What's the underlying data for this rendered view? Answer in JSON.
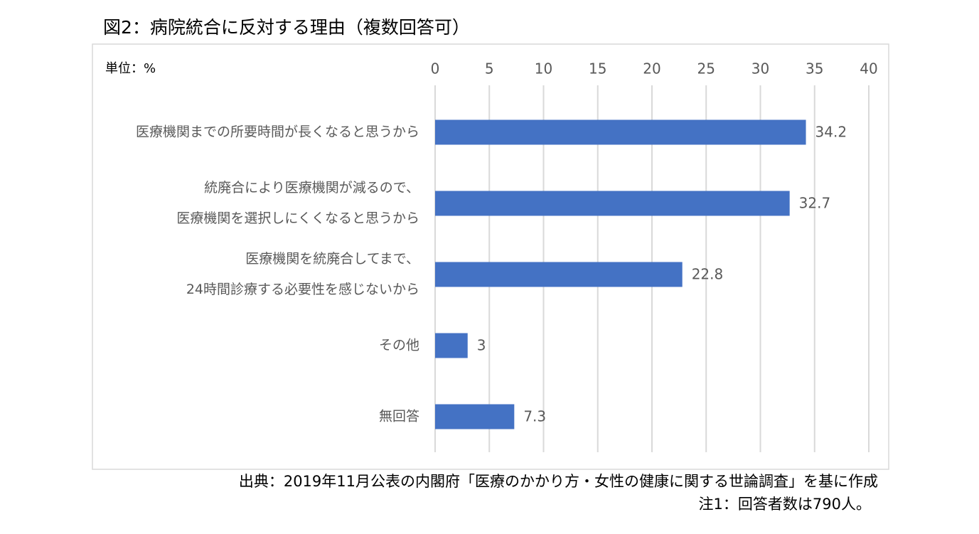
{
  "chart_data": {
    "type": "bar",
    "orientation": "horizontal",
    "title": "図2：病院統合に反対する理由（複数回答可）",
    "unit_label": "単位：%",
    "categories": [
      [
        "医療機関までの所要時間が長くなると思うから"
      ],
      [
        "統廃合により医療機関が減るので、",
        "医療機関を選択しにくくなると思うから"
      ],
      [
        "医療機関を統廃合してまで、",
        "24時間診療する必要性を感じないから"
      ],
      [
        "その他"
      ],
      [
        "無回答"
      ]
    ],
    "values": [
      34.2,
      32.7,
      22.8,
      3,
      7.3
    ],
    "color": "#4472c4",
    "xlim": [
      0,
      40
    ],
    "xticks": [
      0,
      5,
      10,
      15,
      20,
      25,
      30,
      35,
      40
    ],
    "grid": true,
    "source": "出典：2019年11月公表の内閣府「医療のかかり方・女性の健康に関する世論調査」を基に作成",
    "note": "注1：回答者数は790人。"
  }
}
